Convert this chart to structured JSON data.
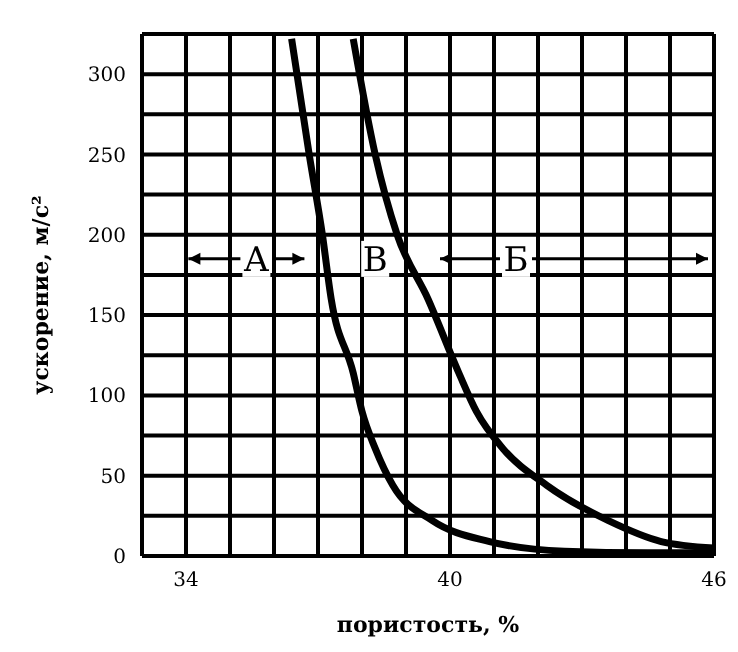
{
  "chart_data": {
    "type": "line",
    "xlabel": "пористость, %",
    "ylabel": "ускорение, м/с²",
    "xlim": [
      33,
      46
    ],
    "ylim": [
      0,
      325
    ],
    "xticks": [
      {
        "value": 33,
        "label": null
      },
      34,
      {
        "value": 35,
        "label": null
      },
      {
        "value": 36,
        "label": null
      },
      {
        "value": 37,
        "label": null
      },
      {
        "value": 38,
        "label": null
      },
      {
        "value": 39,
        "label": null
      },
      40,
      {
        "value": 41,
        "label": null
      },
      {
        "value": 42,
        "label": null
      },
      {
        "value": 43,
        "label": null
      },
      {
        "value": 44,
        "label": null
      },
      {
        "value": 45,
        "label": null
      },
      46
    ],
    "yticks": [
      0,
      {
        "value": 25,
        "label": null
      },
      50,
      {
        "value": 75,
        "label": null
      },
      100,
      {
        "value": 125,
        "label": null
      },
      150,
      {
        "value": 175,
        "label": null
      },
      200,
      {
        "value": 225,
        "label": null
      },
      250,
      {
        "value": 275,
        "label": null
      },
      300,
      {
        "value": 325,
        "label": null
      }
    ],
    "grid": true,
    "marker": "none",
    "line_style": "solid",
    "series": [
      {
        "color": "#000000",
        "x": [
          36.4,
          36.8,
          37.1,
          37.3,
          37.8,
          38.0,
          38.3,
          38.7,
          39.6,
          40.9,
          42.6,
          44.5,
          46
        ],
        "values": [
          322,
          250,
          200,
          160,
          114,
          90,
          67,
          44,
          22,
          9,
          3,
          2,
          2
        ]
      },
      {
        "color": "#000000",
        "x": [
          37.8,
          38.3,
          38.8,
          39.5,
          40.2,
          40.6,
          41.2,
          42.2,
          43.6,
          44.8,
          46
        ],
        "values": [
          322,
          250,
          200,
          160,
          114,
          90,
          67,
          44,
          22,
          9,
          5
        ]
      }
    ],
    "annotations": [
      {
        "text": "А",
        "x": 35.6,
        "y": 185
      },
      {
        "text": "В",
        "x": 38.3,
        "y": 185
      },
      {
        "text": "Б",
        "x": 41.5,
        "y": 185
      }
    ]
  }
}
